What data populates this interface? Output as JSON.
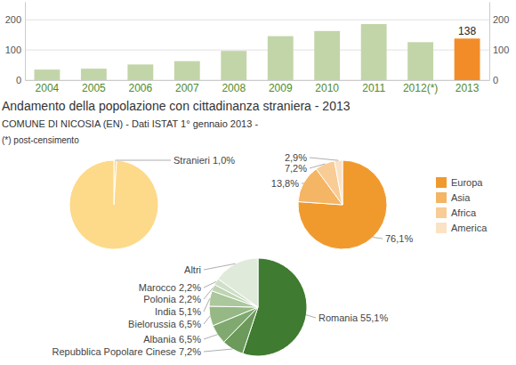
{
  "chart_data": [
    {
      "type": "bar",
      "title": "Andamento della popolazione con cittadinanza straniera - 2013",
      "subtitle": "COMUNE DI NICOSIA (EN) - Dati ISTAT 1° gennaio 2013 -",
      "annotations": [
        "(*) post-censimento"
      ],
      "categories": [
        "2004",
        "2005",
        "2006",
        "2007",
        "2008",
        "2009",
        "2010",
        "2011",
        "2012(*)",
        "2013"
      ],
      "series": [
        {
          "color": "#c2d5a8",
          "values": [
            35,
            38,
            52,
            63,
            97,
            146,
            163,
            186,
            126,
            null
          ]
        },
        {
          "color": "#f28c28",
          "values": [
            null,
            null,
            null,
            null,
            null,
            null,
            null,
            null,
            null,
            138
          ],
          "data_labels": true
        }
      ],
      "ylim": [
        0,
        260
      ],
      "yticks": [
        0,
        100,
        200
      ],
      "grid": true
    },
    {
      "type": "pie",
      "categories": [
        "Stranieri",
        null
      ],
      "values": [
        1.0,
        99.0
      ],
      "value_labels": [
        "1,0%",
        null
      ],
      "colors": [
        "#fdd98a",
        "#fdd98a"
      ],
      "data_labels": true
    },
    {
      "type": "pie",
      "categories": [
        "Europa",
        "Asia",
        "Africa",
        "America"
      ],
      "values": [
        76.1,
        13.8,
        7.2,
        2.9
      ],
      "value_labels": [
        "76,1%",
        "13,8%",
        "7,2%",
        "2,9%"
      ],
      "colors": [
        "#f09a2e",
        "#f4b565",
        "#f8cc94",
        "#fbe2c4"
      ],
      "data_labels": true,
      "legend": "right"
    },
    {
      "type": "pie",
      "categories": [
        "Romania",
        "Repubblica Popolare Cinese",
        "Albania",
        "Bielorussia",
        "India",
        "Polonia",
        "Marocco",
        "Altri"
      ],
      "values": [
        55.1,
        7.2,
        6.5,
        6.5,
        5.1,
        2.2,
        2.2,
        15.2
      ],
      "value_labels": [
        "55,1%",
        "7,2%",
        "6,5%",
        "6,5%",
        "5,1%",
        "2,2%",
        "2,2%",
        null
      ],
      "colors": [
        "#3f7b30",
        "#6b9a5a",
        "#80a96f",
        "#95b885",
        "#abc79c",
        "#bed4b2",
        "#d0e0c8",
        "#e0eadb"
      ],
      "data_labels": true
    }
  ]
}
